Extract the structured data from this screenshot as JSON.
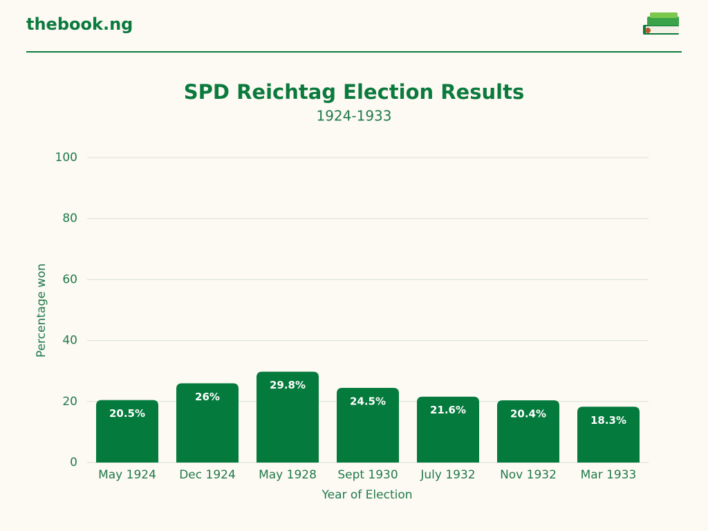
{
  "header": {
    "brand": "thebook.ng"
  },
  "chart_data": {
    "type": "bar",
    "title": "SPD Reichtag Election Results",
    "subtitle": "1924-1933",
    "x_label": "Year of Election",
    "y_label": "Percentage won",
    "categories": [
      "May 1924",
      "Dec 1924",
      "May 1928",
      "Sept 1930",
      "July 1932",
      "Nov 1932",
      "Mar 1933"
    ],
    "values": [
      20.5,
      26,
      29.8,
      24.5,
      21.6,
      20.4,
      18.3
    ],
    "value_labels": [
      "20.5%",
      "26%",
      "29.8%",
      "24.5%",
      "21.6%",
      "20.4%",
      "18.3%"
    ],
    "color": "#047a3c",
    "ylim": [
      0,
      100
    ],
    "yticks": [
      0,
      20,
      40,
      60,
      80,
      100
    ],
    "grid": true
  }
}
